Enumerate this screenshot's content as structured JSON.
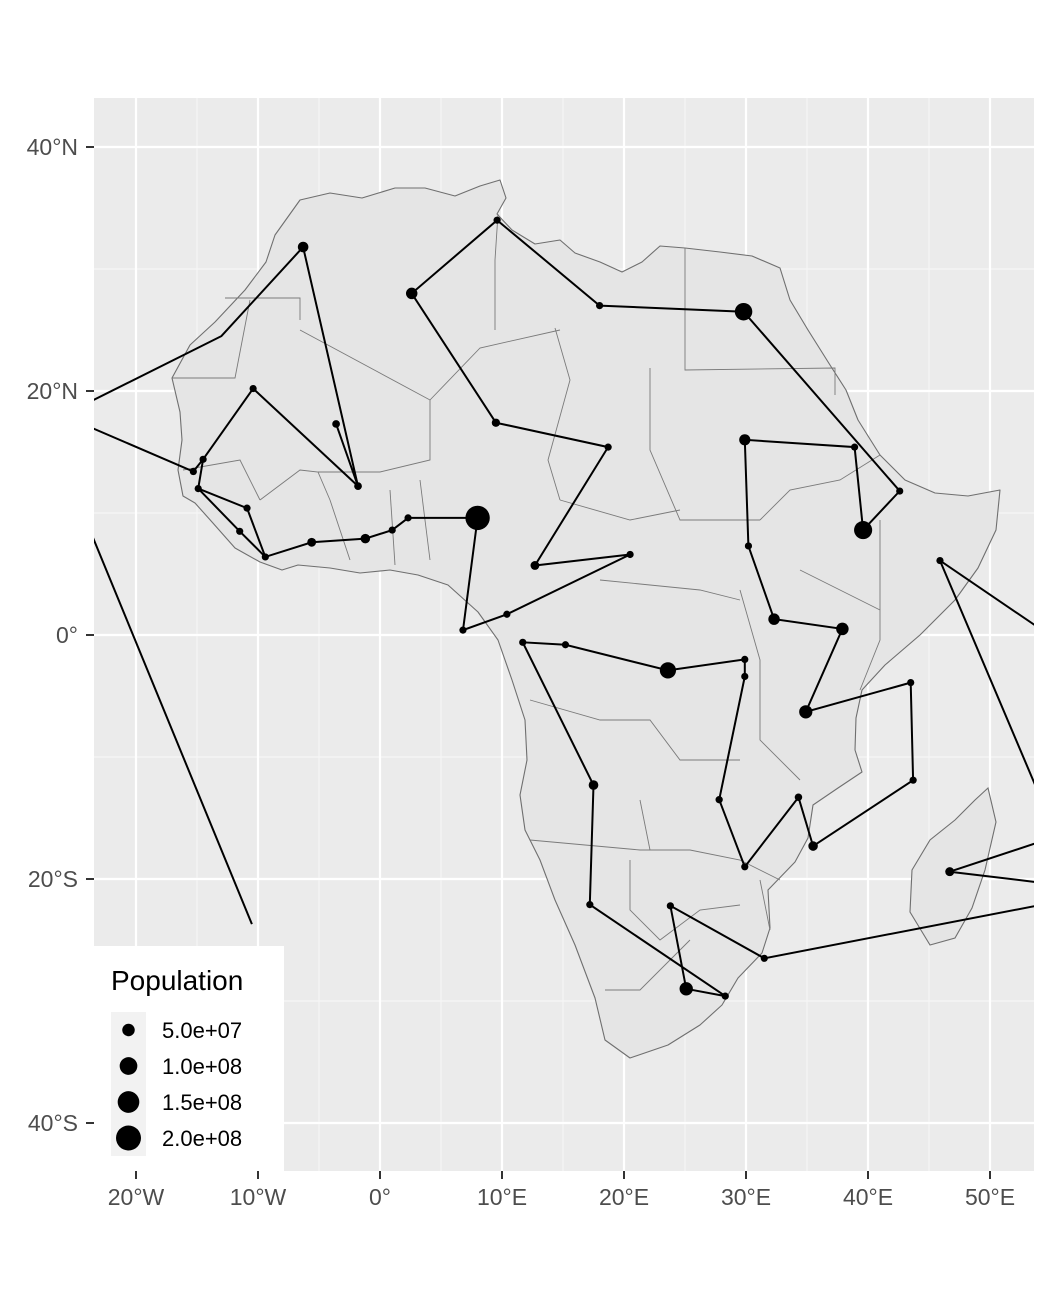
{
  "chart_data": {
    "type": "map",
    "region": "Africa",
    "x_axis": {
      "ticks": [
        -20,
        -10,
        0,
        10,
        20,
        30,
        40,
        50
      ],
      "tick_labels": [
        "20°W",
        "10°W",
        "0°",
        "10°E",
        "20°E",
        "30°E",
        "40°E",
        "50°E"
      ]
    },
    "y_axis": {
      "ticks": [
        40,
        20,
        0,
        -20,
        -40
      ],
      "tick_labels": [
        "40°N",
        "20°N",
        "0°",
        "20°S",
        "40°S"
      ]
    },
    "xlim": [
      -23.5,
      53.5
    ],
    "ylim": [
      -43,
      44
    ],
    "legend": {
      "title": "Population",
      "position": "bottom-left",
      "entries": [
        {
          "label": "5.0e+07",
          "value": 50000000
        },
        {
          "label": "1.0e+08",
          "value": 100000000
        },
        {
          "label": "1.5e+08",
          "value": 150000000
        },
        {
          "label": "2.0e+08",
          "value": 200000000
        }
      ]
    },
    "route_points": [
      {
        "lon": 8.0,
        "lat": 9.6,
        "pop": 190000000
      },
      {
        "lon": 6.8,
        "lat": 0.4,
        "pop": 200000
      },
      {
        "lon": 10.4,
        "lat": 1.7,
        "pop": 1300000
      },
      {
        "lon": 20.5,
        "lat": 6.6,
        "pop": 4700000
      },
      {
        "lon": 12.7,
        "lat": 5.7,
        "pop": 25000000
      },
      {
        "lon": 18.7,
        "lat": 15.4,
        "pop": 15000000
      },
      {
        "lon": 9.5,
        "lat": 17.4,
        "pop": 22000000
      },
      {
        "lon": 2.6,
        "lat": 28.0,
        "pop": 42000000
      },
      {
        "lon": 9.6,
        "lat": 34.0,
        "pop": 11500000
      },
      {
        "lon": 18.0,
        "lat": 27.0,
        "pop": 6700000
      },
      {
        "lon": 29.8,
        "lat": 26.5,
        "pop": 98000000
      },
      {
        "lon": 42.6,
        "lat": 11.8,
        "pop": 950000
      },
      {
        "lon": 39.6,
        "lat": 8.6,
        "pop": 105000000
      },
      {
        "lon": 38.9,
        "lat": 15.4,
        "pop": 5000000
      },
      {
        "lon": 29.9,
        "lat": 16.0,
        "pop": 40000000
      },
      {
        "lon": 30.2,
        "lat": 7.3,
        "pop": 12500000
      },
      {
        "lon": 32.3,
        "lat": 1.3,
        "pop": 42000000
      },
      {
        "lon": 37.9,
        "lat": 0.5,
        "pop": 50000000
      },
      {
        "lon": 34.9,
        "lat": -6.3,
        "pop": 56000000
      },
      {
        "lon": 43.5,
        "lat": -3.9,
        "pop": 100000
      },
      {
        "lon": 43.7,
        "lat": -11.9,
        "pop": 800000
      },
      {
        "lon": 35.5,
        "lat": -17.3,
        "pop": 29000000
      },
      {
        "lon": 34.3,
        "lat": -13.3,
        "pop": 18000000
      },
      {
        "lon": 29.9,
        "lat": -19.0,
        "pop": 14000000
      },
      {
        "lon": 27.8,
        "lat": -13.5,
        "pop": 17000000
      },
      {
        "lon": 29.9,
        "lat": -3.4,
        "pop": 11000000
      },
      {
        "lon": 29.9,
        "lat": -2.0,
        "pop": 12500000
      },
      {
        "lon": 23.6,
        "lat": -2.9,
        "pop": 84000000
      },
      {
        "lon": 15.2,
        "lat": -0.8,
        "pop": 5200000
      },
      {
        "lon": 11.7,
        "lat": -0.6,
        "pop": 2100000
      },
      {
        "lon": 17.5,
        "lat": -12.3,
        "pop": 30000000
      },
      {
        "lon": 17.2,
        "lat": -22.1,
        "pop": 2500000
      },
      {
        "lon": 28.3,
        "lat": -29.6,
        "pop": 2200000
      },
      {
        "lon": 25.1,
        "lat": -29.0,
        "pop": 57000000
      },
      {
        "lon": 23.8,
        "lat": -22.2,
        "pop": 2300000
      },
      {
        "lon": 31.5,
        "lat": -26.5,
        "pop": 1400000
      },
      {
        "lon": 60.0,
        "lat": -21.0,
        "pop": 0
      },
      {
        "lon": 46.7,
        "lat": -19.4,
        "pop": 26000000
      },
      {
        "lon": 60.0,
        "lat": -15.0,
        "pop": 0
      },
      {
        "lon": 54.0,
        "lat": -13.0,
        "pop": 0
      },
      {
        "lon": 45.9,
        "lat": 6.1,
        "pop": 15000000
      },
      {
        "lon": 60.0,
        "lat": -3.5,
        "pop": 0
      }
    ],
    "west_route_points": [
      {
        "lon": -3.6,
        "lat": 17.3,
        "pop": 19000000
      },
      {
        "lon": -1.8,
        "lat": 12.2,
        "pop": 19000000
      },
      {
        "lon": -6.3,
        "lat": 31.8,
        "pop": 36000000
      },
      {
        "lon": -13.0,
        "lat": 24.5,
        "pop": 0
      },
      {
        "lon": -26.0,
        "lat": 18.0,
        "pop": 0
      },
      {
        "lon": -15.3,
        "lat": 13.4,
        "pop": 2100000
      },
      {
        "lon": -14.5,
        "lat": 14.4,
        "pop": 16000000
      },
      {
        "lon": -14.9,
        "lat": 12.0,
        "pop": 1800000
      },
      {
        "lon": -11.5,
        "lat": 8.5,
        "pop": 7500000
      },
      {
        "lon": -9.4,
        "lat": 6.4,
        "pop": 4800000
      },
      {
        "lon": -5.6,
        "lat": 7.6,
        "pop": 25000000
      },
      {
        "lon": -1.2,
        "lat": 7.9,
        "pop": 29000000
      },
      {
        "lon": 1.0,
        "lat": 8.6,
        "pop": 7800000
      },
      {
        "lon": 2.3,
        "lat": 9.6,
        "pop": 11500000
      }
    ],
    "extra_segments": [
      {
        "from": {
          "lon": -10.4,
          "lat": 20.2
        },
        "to": {
          "lon": -14.5,
          "lat": 14.4
        }
      },
      {
        "from": {
          "lon": -10.4,
          "lat": 20.2
        },
        "to": {
          "lon": -1.8,
          "lat": 12.2
        }
      },
      {
        "from": {
          "lon": -10.9,
          "lat": 10.4
        },
        "to": {
          "lon": -14.9,
          "lat": 12.0
        }
      },
      {
        "from": {
          "lon": -10.9,
          "lat": 10.4
        },
        "to": {
          "lon": -9.4,
          "lat": 6.4
        }
      },
      {
        "from": {
          "lon": -26.0,
          "lat": 14.0
        },
        "to": {
          "lon": -10.5,
          "lat": -23.7
        }
      },
      {
        "from": {
          "lon": 2.3,
          "lat": 9.6
        },
        "to": {
          "lon": 8.0,
          "lat": 9.6
        }
      }
    ],
    "extra_points": [
      {
        "lon": -10.4,
        "lat": 20.2,
        "pop": 4400000
      },
      {
        "lon": -10.9,
        "lat": 10.4,
        "pop": 12000000
      }
    ]
  }
}
